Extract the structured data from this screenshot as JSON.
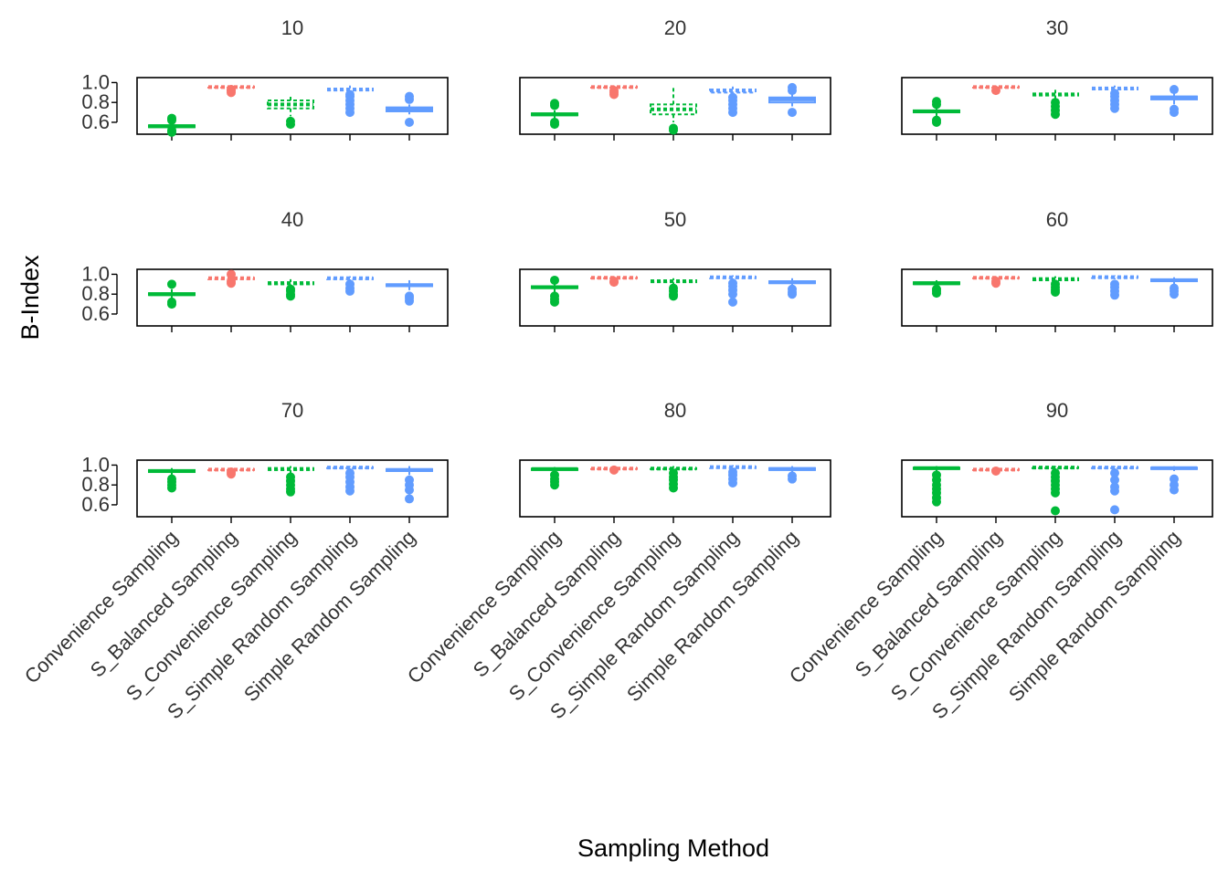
{
  "chart_data": {
    "type": "box",
    "xlabel": "Sampling Method",
    "ylabel": "B-Index",
    "categories": [
      "Convenience Sampling",
      "S_Balanced Sampling",
      "S_Convenience Sampling",
      "S_Simple Random Sampling",
      "Simple Random Sampling"
    ],
    "category_colors": [
      "#00BA38",
      "#F8766D",
      "#00BA38",
      "#619CFF",
      "#619CFF"
    ],
    "category_dashed": [
      false,
      true,
      true,
      true,
      false
    ],
    "yticks": [
      "0.6",
      "0.8",
      "1.0"
    ],
    "ylim": [
      0.48,
      1.05
    ],
    "panels": [
      {
        "title": "10",
        "boxes": [
          {
            "q1": 0.55,
            "median": 0.56,
            "q3": 0.57,
            "wlo": 0.52,
            "whi": 0.6,
            "outliers": [
              0.5,
              0.52,
              0.62,
              0.64
            ]
          },
          {
            "q1": 0.95,
            "median": 0.955,
            "q3": 0.96,
            "wlo": 0.93,
            "whi": 0.97,
            "outliers": [
              0.9,
              0.92,
              0.93
            ]
          },
          {
            "q1": 0.74,
            "median": 0.78,
            "q3": 0.82,
            "wlo": 0.66,
            "whi": 0.86,
            "outliers": [
              0.58,
              0.61
            ]
          },
          {
            "q1": 0.92,
            "median": 0.93,
            "q3": 0.94,
            "wlo": 0.89,
            "whi": 0.97,
            "outliers": [
              0.7,
              0.74,
              0.78,
              0.82,
              0.86,
              0.88
            ]
          },
          {
            "q1": 0.71,
            "median": 0.73,
            "q3": 0.75,
            "wlo": 0.68,
            "whi": 0.78,
            "outliers": [
              0.6,
              0.83,
              0.86
            ]
          }
        ]
      },
      {
        "title": "20",
        "boxes": [
          {
            "q1": 0.67,
            "median": 0.68,
            "q3": 0.69,
            "wlo": 0.64,
            "whi": 0.72,
            "outliers": [
              0.58,
              0.6,
              0.77,
              0.79
            ]
          },
          {
            "q1": 0.95,
            "median": 0.955,
            "q3": 0.96,
            "wlo": 0.94,
            "whi": 0.97,
            "outliers": [
              0.88,
              0.9,
              0.92
            ]
          },
          {
            "q1": 0.68,
            "median": 0.73,
            "q3": 0.78,
            "wlo": 0.6,
            "whi": 0.95,
            "outliers": [
              0.52,
              0.54
            ]
          },
          {
            "q1": 0.9,
            "median": 0.92,
            "q3": 0.93,
            "wlo": 0.87,
            "whi": 0.96,
            "outliers": [
              0.7,
              0.74,
              0.78,
              0.82,
              0.85
            ]
          },
          {
            "q1": 0.8,
            "median": 0.83,
            "q3": 0.85,
            "wlo": 0.76,
            "whi": 0.88,
            "outliers": [
              0.7,
              0.92,
              0.95
            ]
          }
        ]
      },
      {
        "title": "30",
        "boxes": [
          {
            "q1": 0.7,
            "median": 0.71,
            "q3": 0.72,
            "wlo": 0.66,
            "whi": 0.76,
            "outliers": [
              0.6,
              0.62,
              0.78,
              0.81
            ]
          },
          {
            "q1": 0.95,
            "median": 0.955,
            "q3": 0.96,
            "wlo": 0.94,
            "whi": 0.97,
            "outliers": [
              0.92
            ]
          },
          {
            "q1": 0.87,
            "median": 0.88,
            "q3": 0.89,
            "wlo": 0.84,
            "whi": 0.93,
            "outliers": [
              0.68,
              0.72,
              0.76,
              0.8
            ]
          },
          {
            "q1": 0.93,
            "median": 0.94,
            "q3": 0.95,
            "wlo": 0.91,
            "whi": 0.97,
            "outliers": [
              0.74,
              0.78,
              0.82,
              0.86,
              0.89
            ]
          },
          {
            "q1": 0.83,
            "median": 0.85,
            "q3": 0.86,
            "wlo": 0.78,
            "whi": 0.9,
            "outliers": [
              0.7,
              0.73,
              0.93
            ]
          }
        ]
      },
      {
        "title": "40",
        "boxes": [
          {
            "q1": 0.79,
            "median": 0.8,
            "q3": 0.81,
            "wlo": 0.76,
            "whi": 0.85,
            "outliers": [
              0.7,
              0.72,
              0.9
            ]
          },
          {
            "q1": 0.95,
            "median": 0.96,
            "q3": 0.965,
            "wlo": 0.94,
            "whi": 0.975,
            "outliers": [
              0.91,
              0.93,
              1.0
            ]
          },
          {
            "q1": 0.9,
            "median": 0.91,
            "q3": 0.92,
            "wlo": 0.87,
            "whi": 0.95,
            "outliers": [
              0.78,
              0.8,
              0.83,
              0.85
            ]
          },
          {
            "q1": 0.95,
            "median": 0.96,
            "q3": 0.965,
            "wlo": 0.93,
            "whi": 0.98,
            "outliers": [
              0.83,
              0.86,
              0.9
            ]
          },
          {
            "q1": 0.88,
            "median": 0.89,
            "q3": 0.9,
            "wlo": 0.84,
            "whi": 0.94,
            "outliers": [
              0.73,
              0.76,
              0.78
            ]
          }
        ]
      },
      {
        "title": "50",
        "boxes": [
          {
            "q1": 0.86,
            "median": 0.87,
            "q3": 0.88,
            "wlo": 0.82,
            "whi": 0.91,
            "outliers": [
              0.72,
              0.75,
              0.78,
              0.94
            ]
          },
          {
            "q1": 0.96,
            "median": 0.965,
            "q3": 0.97,
            "wlo": 0.95,
            "whi": 0.98,
            "outliers": [
              0.92,
              0.93
            ]
          },
          {
            "q1": 0.92,
            "median": 0.93,
            "q3": 0.94,
            "wlo": 0.9,
            "whi": 0.96,
            "outliers": [
              0.78,
              0.8,
              0.83,
              0.86
            ]
          },
          {
            "q1": 0.96,
            "median": 0.97,
            "q3": 0.975,
            "wlo": 0.94,
            "whi": 0.99,
            "outliers": [
              0.72,
              0.8,
              0.84,
              0.88,
              0.91
            ]
          },
          {
            "q1": 0.91,
            "median": 0.92,
            "q3": 0.93,
            "wlo": 0.88,
            "whi": 0.96,
            "outliers": [
              0.8,
              0.82,
              0.85
            ]
          }
        ]
      },
      {
        "title": "60",
        "boxes": [
          {
            "q1": 0.9,
            "median": 0.91,
            "q3": 0.92,
            "wlo": 0.87,
            "whi": 0.94,
            "outliers": [
              0.81,
              0.83,
              0.85
            ]
          },
          {
            "q1": 0.96,
            "median": 0.965,
            "q3": 0.97,
            "wlo": 0.95,
            "whi": 0.98,
            "outliers": [
              0.91,
              0.93
            ]
          },
          {
            "q1": 0.94,
            "median": 0.95,
            "q3": 0.96,
            "wlo": 0.91,
            "whi": 0.98,
            "outliers": [
              0.82,
              0.84,
              0.87,
              0.9
            ]
          },
          {
            "q1": 0.965,
            "median": 0.97,
            "q3": 0.98,
            "wlo": 0.95,
            "whi": 0.99,
            "outliers": [
              0.79,
              0.83,
              0.87,
              0.9
            ]
          },
          {
            "q1": 0.93,
            "median": 0.94,
            "q3": 0.95,
            "wlo": 0.9,
            "whi": 0.97,
            "outliers": [
              0.8,
              0.83,
              0.86
            ]
          }
        ]
      },
      {
        "title": "70",
        "boxes": [
          {
            "q1": 0.93,
            "median": 0.94,
            "q3": 0.95,
            "wlo": 0.9,
            "whi": 0.97,
            "outliers": [
              0.77,
              0.8,
              0.83,
              0.86
            ]
          },
          {
            "q1": 0.95,
            "median": 0.955,
            "q3": 0.96,
            "wlo": 0.94,
            "whi": 0.97,
            "outliers": [
              0.91,
              0.93
            ]
          },
          {
            "q1": 0.95,
            "median": 0.96,
            "q3": 0.97,
            "wlo": 0.92,
            "whi": 0.99,
            "outliers": [
              0.73,
              0.76,
              0.8,
              0.84,
              0.88
            ]
          },
          {
            "q1": 0.97,
            "median": 0.975,
            "q3": 0.98,
            "wlo": 0.96,
            "whi": 0.99,
            "outliers": [
              0.74,
              0.78,
              0.83,
              0.88,
              0.92
            ]
          },
          {
            "q1": 0.94,
            "median": 0.95,
            "q3": 0.96,
            "wlo": 0.9,
            "whi": 0.99,
            "outliers": [
              0.66,
              0.75,
              0.8,
              0.85
            ]
          }
        ]
      },
      {
        "title": "80",
        "boxes": [
          {
            "q1": 0.95,
            "median": 0.96,
            "q3": 0.965,
            "wlo": 0.93,
            "whi": 0.98,
            "outliers": [
              0.8,
              0.83,
              0.86,
              0.9
            ]
          },
          {
            "q1": 0.96,
            "median": 0.965,
            "q3": 0.97,
            "wlo": 0.955,
            "whi": 0.975,
            "outliers": [
              0.95
            ]
          },
          {
            "q1": 0.96,
            "median": 0.965,
            "q3": 0.97,
            "wlo": 0.94,
            "whi": 0.99,
            "outliers": [
              0.77,
              0.81,
              0.85,
              0.88,
              0.92
            ]
          },
          {
            "q1": 0.97,
            "median": 0.98,
            "q3": 0.985,
            "wlo": 0.96,
            "whi": 1.0,
            "outliers": [
              0.82,
              0.86,
              0.9,
              0.93
            ]
          },
          {
            "q1": 0.95,
            "median": 0.96,
            "q3": 0.97,
            "wlo": 0.93,
            "whi": 0.99,
            "outliers": [
              0.86,
              0.89
            ]
          }
        ]
      },
      {
        "title": "90",
        "boxes": [
          {
            "q1": 0.96,
            "median": 0.97,
            "q3": 0.975,
            "wlo": 0.93,
            "whi": 0.99,
            "outliers": [
              0.63,
              0.67,
              0.72,
              0.76,
              0.8,
              0.85,
              0.9
            ]
          },
          {
            "q1": 0.95,
            "median": 0.955,
            "q3": 0.96,
            "wlo": 0.945,
            "whi": 0.965,
            "outliers": [
              0.94
            ]
          },
          {
            "q1": 0.97,
            "median": 0.975,
            "q3": 0.98,
            "wlo": 0.95,
            "whi": 0.99,
            "outliers": [
              0.54,
              0.72,
              0.76,
              0.8,
              0.84,
              0.88,
              0.92
            ]
          },
          {
            "q1": 0.97,
            "median": 0.975,
            "q3": 0.98,
            "wlo": 0.96,
            "whi": 0.99,
            "outliers": [
              0.55,
              0.74,
              0.78,
              0.85,
              0.92
            ]
          },
          {
            "q1": 0.96,
            "median": 0.97,
            "q3": 0.975,
            "wlo": 0.94,
            "whi": 0.99,
            "outliers": [
              0.75,
              0.8,
              0.86
            ]
          }
        ]
      }
    ]
  }
}
